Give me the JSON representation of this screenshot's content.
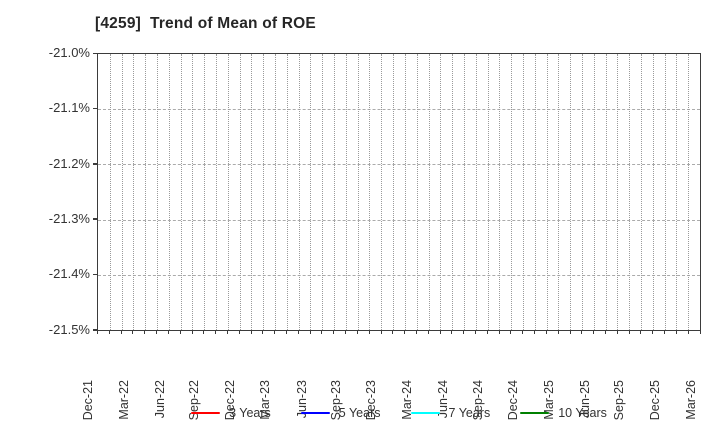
{
  "chart_data": {
    "type": "line",
    "title": "[4259]  Trend of Mean of ROE",
    "xlabel": "",
    "ylabel": "",
    "x_categories": [
      "Dec-21",
      "Mar-22",
      "Jun-22",
      "Sep-22",
      "Dec-22",
      "Mar-23",
      "Jun-23",
      "Sep-23",
      "Dec-23",
      "Mar-24",
      "Jun-24",
      "Sep-24",
      "Dec-24",
      "Mar-25",
      "Jun-25",
      "Sep-25",
      "Dec-25",
      "Mar-26"
    ],
    "x_minor_divisions_per_label": 3,
    "y_tick_labels": [
      "-21.0%",
      "-21.1%",
      "-21.2%",
      "-21.3%",
      "-21.4%",
      "-21.5%"
    ],
    "ylim": [
      -21.5,
      -21.0
    ],
    "grid": {
      "vertical": "dotted, one line per month",
      "horizontal": "dashed, one line per 0.1% tick",
      "grid_color": "#9a9a9a"
    },
    "legend": {
      "position": "bottom-center",
      "entries": [
        {
          "label": "3 Years",
          "color": "#ff0000"
        },
        {
          "label": "5 Years",
          "color": "#0000ff"
        },
        {
          "label": "7 Years",
          "color": "#00ffff"
        },
        {
          "label": "10 Years",
          "color": "#008000"
        }
      ]
    },
    "series": [
      {
        "name": "3 Years",
        "color": "#ff0000",
        "values": []
      },
      {
        "name": "5 Years",
        "color": "#0000ff",
        "values": []
      },
      {
        "name": "7 Years",
        "color": "#00ffff",
        "values": []
      },
      {
        "name": "10 Years",
        "color": "#008000",
        "values": []
      }
    ],
    "plot_note": "no data points are visible inside the axis range"
  },
  "colors": {
    "background": "#ffffff",
    "axis_border": "#3b3b3b",
    "tick_text": "#333333",
    "title_text": "#262626"
  }
}
